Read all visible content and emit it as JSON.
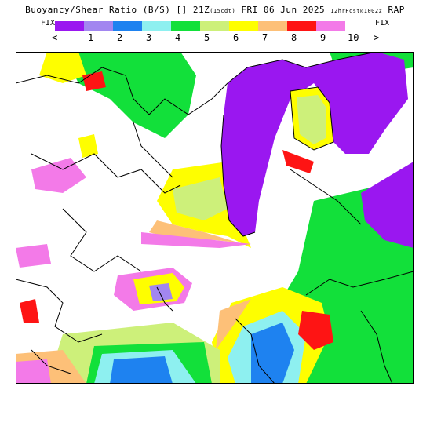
{
  "header": {
    "title_main": "Buoyancy/Shear Ratio (B/S) [] 21Z",
    "title_small1": "(15cdt)",
    "title_date": " FRI 06 Jun 2025 ",
    "title_small2": "12hrFcst@1002z",
    "title_model": " RAP"
  },
  "legend": {
    "fix_left": "FIX",
    "fix_right": "FIX",
    "arrow_left": "<",
    "arrow_right": ">",
    "ticks": [
      "1",
      "2",
      "3",
      "4",
      "5",
      "6",
      "7",
      "8",
      "9",
      "10"
    ],
    "colors": [
      "#9a17f0",
      "#a286f0",
      "#1e82f0",
      "#8ef0f0",
      "#12e03a",
      "#cdf07a",
      "#fefe00",
      "#fdc078",
      "#fe1414",
      "#f37ae8"
    ]
  },
  "map": {
    "background": "#ffffff",
    "lake_color": "#9a17f0"
  }
}
